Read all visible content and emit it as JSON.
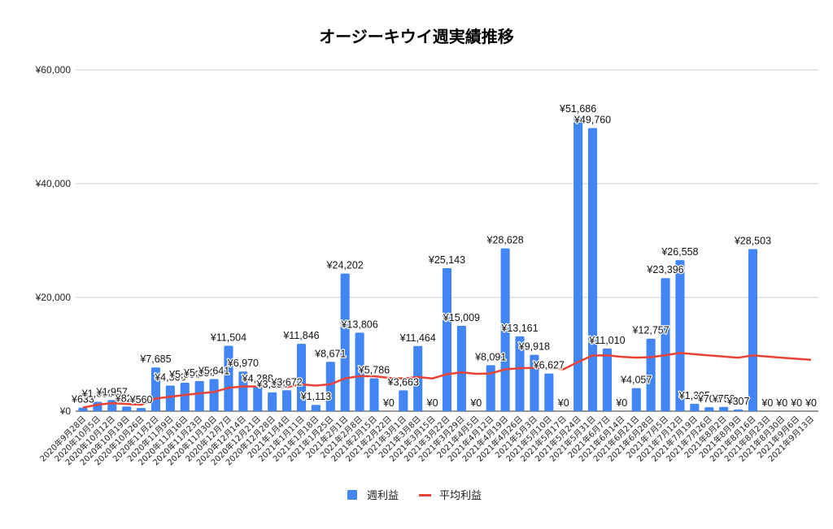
{
  "chart_data": {
    "type": "bar",
    "title": "オージーキウイ週実績推移",
    "xlabel": "",
    "ylabel": "",
    "ylim": [
      0,
      60000
    ],
    "yticks": [
      0,
      20000,
      40000,
      60000
    ],
    "ytick_labels": [
      "¥0",
      "¥20,000",
      "¥40,000",
      "¥60,000"
    ],
    "grid": true,
    "legend_position": "bottom",
    "categories": [
      "2020年9月28日",
      "2020年10月5日",
      "2020年10月12日",
      "2020年10月19日",
      "2020年10月26日",
      "2020年11月2日",
      "2020年11月9日",
      "2020年11月16日",
      "2020年11月23日",
      "2020年11月30日",
      "2020年12月7日",
      "2020年12月14日",
      "2020年12月21日",
      "2020年12月28日",
      "2021年1月4日",
      "2021年1月11日",
      "2021年1月18日",
      "2021年1月25日",
      "2021年2月1日",
      "2021年2月8日",
      "2021年2月15日",
      "2021年2月22日",
      "2021年3月1日",
      "2021年3月8日",
      "2021年3月15日",
      "2021年3月22日",
      "2021年3月29日",
      "2021年4月5日",
      "2021年4月12日",
      "2021年4月19日",
      "2021年4月26日",
      "2021年5月3日",
      "2021年5月10日",
      "2021年5月17日",
      "2021年5月24日",
      "2021年5月31日",
      "2021年6月7日",
      "2021年6月14日",
      "2021年6月21日",
      "2021年6月28日",
      "2021年7月5日",
      "2021年7月12日",
      "2021年7月19日",
      "2021年7月26日",
      "2021年8月2日",
      "2021年8月9日",
      "2021年8月16日",
      "2021年8月23日",
      "2021年8月30日",
      "2021年9月6日",
      "2021年9月13日"
    ],
    "series": [
      {
        "name": "週利益",
        "type": "bar",
        "color": "#4285f4",
        "values": [
          633,
          1650,
          1957,
          820,
          560,
          7685,
          4500,
          5000,
          5300,
          5641,
          11504,
          6970,
          4288,
          3300,
          3672,
          11846,
          1113,
          8671,
          24202,
          13806,
          5786,
          0,
          3663,
          11464,
          0,
          25143,
          15009,
          0,
          8091,
          28628,
          13161,
          9918,
          6627,
          0,
          51686,
          49760,
          11010,
          0,
          4057,
          12757,
          23396,
          26558,
          1305,
          700,
          750,
          307,
          28503,
          0,
          0,
          0,
          0
        ],
        "labels": [
          "¥633",
          "¥1,650",
          "¥1,957",
          "¥820",
          "¥560",
          "¥7,685",
          "¥4,500",
          "¥5,000",
          "¥5,300",
          "¥5,641",
          "¥11,504",
          "¥6,970",
          "¥4,288",
          "¥3,300",
          "¥3,672",
          "¥11,846",
          "¥1,113",
          "¥8,671",
          "¥24,202",
          "¥13,806",
          "¥5,786",
          "¥0",
          "¥3,663",
          "¥11,464",
          "¥0",
          "¥25,143",
          "¥15,009",
          "¥0",
          "¥8,091",
          "¥28,628",
          "¥13,161",
          "¥9,918",
          "¥6,627",
          "¥0",
          "¥51,686",
          "¥49,760",
          "¥11,010",
          "¥0",
          "¥4,057",
          "¥12,757",
          "¥23,396",
          "¥26,558",
          "¥1,305",
          "¥700",
          "¥750",
          "¥307",
          "¥28,503",
          "¥0",
          "¥0",
          "¥0",
          "¥0"
        ]
      },
      {
        "name": "平均利益",
        "type": "line",
        "color": "#ea4335",
        "values": [
          633,
          1142,
          1413,
          1265,
          1124,
          2218,
          2544,
          2851,
          3123,
          3375,
          4114,
          4352,
          4347,
          4272,
          4232,
          4708,
          4496,
          4728,
          5753,
          6156,
          6138,
          5859,
          5763,
          6000,
          5760,
          6506,
          6821,
          6577,
          6630,
          7363,
          7550,
          7624,
          7596,
          7373,
          8640,
          9782,
          9815,
          9557,
          9416,
          9499,
          9837,
          10227,
          10015,
          9805,
          9600,
          9393,
          9804,
          9600,
          9404,
          9216,
          9035
        ]
      }
    ]
  }
}
